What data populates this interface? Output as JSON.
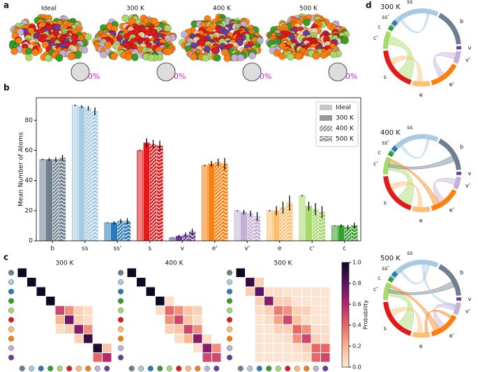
{
  "chart_data": [
    {
      "type": "pie",
      "label": "a",
      "titles": [
        "Ideal",
        "300 K",
        "400 K",
        "500 K"
      ],
      "values": [
        0,
        0,
        0,
        0
      ],
      "value_labels": [
        "0%",
        "0%",
        "0%",
        "0%"
      ],
      "label_color": "#e020d0"
    },
    {
      "type": "bar",
      "label": "b",
      "ylabel": "Mean Number of Atoms",
      "categories": [
        "b",
        "ss",
        "ss'",
        "s",
        "v",
        "e'",
        "v'",
        "e",
        "c'",
        "c"
      ],
      "category_colors": [
        "#6f7f8f",
        "#a6cbe3",
        "#2b7bba",
        "#e31a1c",
        "#6a3d9a",
        "#ff7f0e",
        "#c5b0d5",
        "#fdbf6f",
        "#a6d96a",
        "#33a02c"
      ],
      "series": [
        {
          "name": "Ideal",
          "opacity": 0.55,
          "hatch": "none",
          "values": [
            54,
            90,
            12,
            60,
            2,
            50,
            20,
            20,
            30,
            10
          ],
          "errors": [
            0.5,
            0.5,
            0.3,
            0.5,
            0.2,
            0.5,
            0.4,
            0.4,
            0.5,
            0.3
          ]
        },
        {
          "name": "300 K",
          "opacity": 1,
          "hatch": "none",
          "values": [
            54,
            89,
            12,
            65,
            3,
            51,
            19,
            20,
            23,
            10
          ],
          "errors": [
            1,
            1,
            1,
            3,
            1,
            2,
            1.5,
            3,
            3,
            1
          ]
        },
        {
          "name": "400 K",
          "opacity": 1,
          "hatch": "diagonal",
          "values": [
            54,
            88,
            13,
            64,
            4,
            52,
            18,
            22,
            21,
            9
          ],
          "errors": [
            1.5,
            1.5,
            1.5,
            3,
            1.5,
            2.5,
            2,
            4,
            4,
            1.5
          ]
        },
        {
          "name": "500 K",
          "opacity": 1,
          "hatch": "chevron",
          "values": [
            55,
            86,
            13,
            63,
            6,
            51,
            16,
            25,
            19,
            10
          ],
          "errors": [
            2,
            2.5,
            2,
            3.5,
            2,
            4,
            3,
            5,
            4,
            2
          ]
        }
      ],
      "ylim": [
        0,
        95
      ],
      "yticks": [
        0,
        20,
        40,
        60,
        80
      ],
      "legend": "upper right"
    },
    {
      "type": "heatmap",
      "label": "c",
      "zlim": [
        0,
        1
      ],
      "colorbar_label": "Probability",
      "zticks": [
        {
          "value": 0,
          "label": "0.0"
        },
        {
          "value": 0.2,
          "label": "0.2"
        },
        {
          "value": 0.4,
          "label": "0.4"
        },
        {
          "value": 0.6,
          "label": "0.6"
        },
        {
          "value": 0.8,
          "label": "0.8"
        },
        {
          "value": 1,
          "label": "1.0"
        }
      ],
      "panels": [
        {
          "title": "300 K",
          "values": [
            [
              1,
              null,
              null,
              null,
              null,
              null,
              null,
              null,
              null,
              null
            ],
            [
              null,
              1,
              null,
              null,
              null,
              null,
              null,
              null,
              null,
              null
            ],
            [
              null,
              null,
              1,
              null,
              null,
              null,
              null,
              null,
              null,
              null
            ],
            [
              null,
              null,
              null,
              1,
              null,
              null,
              null,
              null,
              null,
              null
            ],
            [
              null,
              null,
              null,
              null,
              0.5,
              0.3,
              0.1,
              0.05,
              null,
              null
            ],
            [
              null,
              null,
              null,
              null,
              0.2,
              0.75,
              0.1,
              0.05,
              null,
              null
            ],
            [
              null,
              null,
              null,
              null,
              0.05,
              0.1,
              0.7,
              0.3,
              null,
              null
            ],
            [
              null,
              null,
              null,
              null,
              null,
              null,
              0.1,
              0.9,
              null,
              null
            ],
            [
              null,
              null,
              null,
              null,
              null,
              null,
              null,
              null,
              0.95,
              0.15
            ],
            [
              null,
              null,
              null,
              null,
              null,
              null,
              null,
              null,
              0.4,
              0.6
            ]
          ]
        },
        {
          "title": "400 K",
          "values": [
            [
              1,
              null,
              null,
              null,
              null,
              null,
              null,
              null,
              null,
              null
            ],
            [
              null,
              1,
              null,
              null,
              null,
              null,
              null,
              null,
              null,
              null
            ],
            [
              null,
              null,
              1,
              null,
              null,
              null,
              null,
              null,
              null,
              null
            ],
            [
              null,
              null,
              null,
              1,
              0.05,
              null,
              null,
              null,
              null,
              null
            ],
            [
              null,
              null,
              null,
              0.05,
              0.4,
              0.3,
              0.15,
              0.1,
              null,
              null
            ],
            [
              null,
              null,
              null,
              null,
              0.3,
              0.5,
              0.15,
              0.05,
              null,
              null
            ],
            [
              null,
              null,
              null,
              null,
              0.1,
              0.15,
              0.5,
              0.3,
              null,
              null
            ],
            [
              null,
              null,
              null,
              null,
              null,
              0.05,
              0.2,
              0.7,
              0.05,
              null
            ],
            [
              null,
              null,
              null,
              null,
              null,
              null,
              null,
              0.05,
              0.7,
              0.3
            ],
            [
              null,
              null,
              null,
              null,
              null,
              null,
              null,
              null,
              0.5,
              0.5
            ]
          ]
        },
        {
          "title": "500 K",
          "values": [
            [
              1,
              null,
              null,
              null,
              null,
              null,
              null,
              null,
              null,
              null
            ],
            [
              null,
              0.9,
              0.1,
              null,
              null,
              null,
              null,
              null,
              null,
              null
            ],
            [
              null,
              0.1,
              0.8,
              0.05,
              0.05,
              0.02,
              0.02,
              0.02,
              0.02,
              0.02
            ],
            [
              null,
              null,
              0.1,
              0.7,
              0.1,
              0.1,
              0.02,
              0.02,
              0.02,
              0.02
            ],
            [
              null,
              null,
              0.05,
              0.1,
              0.35,
              0.3,
              0.1,
              0.1,
              0.02,
              0.02
            ],
            [
              null,
              null,
              0.02,
              0.05,
              0.25,
              0.5,
              0.15,
              0.05,
              0.02,
              0.02
            ],
            [
              null,
              null,
              0.02,
              0.02,
              0.1,
              0.1,
              0.4,
              0.3,
              0.05,
              0.05
            ],
            [
              null,
              null,
              0.02,
              0.02,
              0.02,
              0.05,
              0.3,
              0.5,
              0.1,
              0.05
            ],
            [
              null,
              null,
              0.02,
              0.02,
              0.02,
              0.02,
              0.05,
              0.1,
              0.4,
              0.4
            ],
            [
              null,
              null,
              0.02,
              0.02,
              0.02,
              0.02,
              0.02,
              0.05,
              0.4,
              0.5
            ]
          ]
        }
      ]
    },
    {
      "type": "chord",
      "label": "d",
      "panels": [
        {
          "title": "300 K"
        },
        {
          "title": "400 K"
        },
        {
          "title": "500 K"
        }
      ],
      "labels": [
        "ss",
        "b",
        "v",
        "v'",
        "e'",
        "e",
        "s",
        "c'",
        "c",
        "ss'"
      ]
    }
  ]
}
